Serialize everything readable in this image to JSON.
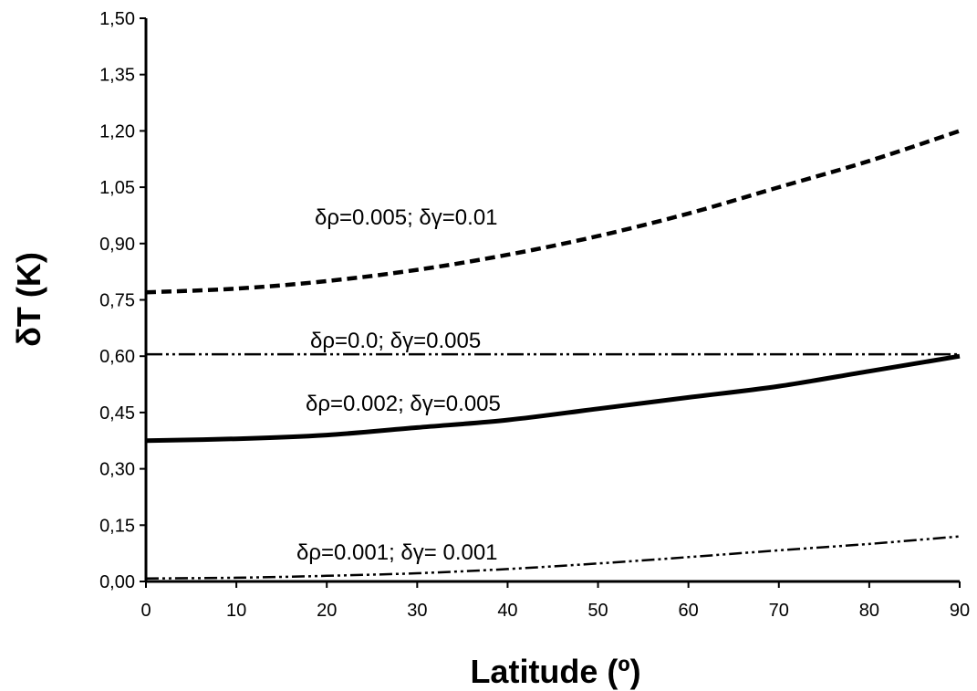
{
  "chart_data": {
    "type": "line",
    "xlabel": "Latitude (º)",
    "ylabel": "δT (K)",
    "xlim": [
      0,
      90
    ],
    "ylim": [
      0,
      1.5
    ],
    "xticks": [
      0,
      10,
      20,
      30,
      40,
      50,
      60,
      70,
      80,
      90
    ],
    "xtick_labels": [
      "0",
      "10",
      "20",
      "30",
      "40",
      "50",
      "60",
      "70",
      "80",
      "90"
    ],
    "yticks": [
      0,
      0.15,
      0.3,
      0.45,
      0.6,
      0.75,
      0.9,
      1.05,
      1.2,
      1.35,
      1.5
    ],
    "ytick_labels": [
      "0,00",
      "0,15",
      "0,30",
      "0,45",
      "0,60",
      "0,75",
      "0,90",
      "1,05",
      "1,20",
      "1,35",
      "1,50"
    ],
    "grid": false,
    "legend": "none",
    "x": [
      0,
      10,
      20,
      30,
      40,
      50,
      60,
      70,
      80,
      90
    ],
    "series": [
      {
        "name": "δρ=0.005; δγ=0.01",
        "style": "dashed",
        "values": [
          0.77,
          0.78,
          0.8,
          0.83,
          0.87,
          0.92,
          0.98,
          1.05,
          1.12,
          1.2
        ]
      },
      {
        "name": "δρ=0.0; δγ=0.005",
        "style": "dash-dot-dot",
        "values": [
          0.605,
          0.605,
          0.605,
          0.605,
          0.605,
          0.605,
          0.605,
          0.605,
          0.605,
          0.605
        ]
      },
      {
        "name": "δρ=0.002; δγ=0.005",
        "style": "solid",
        "values": [
          0.375,
          0.38,
          0.39,
          0.41,
          0.43,
          0.46,
          0.49,
          0.52,
          0.56,
          0.6
        ]
      },
      {
        "name": "δρ=0.001; δγ= 0.001",
        "style": "dash-dot-dot-thin",
        "values": [
          0.008,
          0.01,
          0.015,
          0.022,
          0.033,
          0.048,
          0.065,
          0.083,
          0.1,
          0.12
        ]
      }
    ]
  }
}
